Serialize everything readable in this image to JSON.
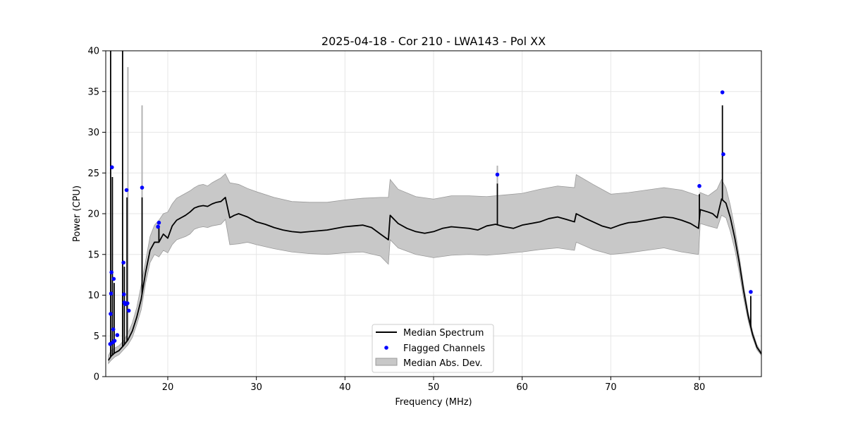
{
  "chart_data": {
    "type": "line",
    "title": "2025-04-18 - Cor 210 - LWA143 - Pol XX",
    "xlabel": "Frequency (MHz)",
    "ylabel": "Power (CPU)",
    "xlim": [
      13.0,
      87.0
    ],
    "ylim": [
      0,
      40
    ],
    "x_ticks": [
      20,
      30,
      40,
      50,
      60,
      70,
      80
    ],
    "y_ticks": [
      0,
      5,
      10,
      15,
      20,
      25,
      30,
      35,
      40
    ],
    "grid": true,
    "legend_position": "bottom-center",
    "colors": {
      "median": "#000000",
      "flagged": "#0000ff",
      "mad_fill": "#c8c8c8",
      "mad_edge": "#9a9a9a"
    },
    "legend": [
      {
        "label": "Median Spectrum",
        "kind": "line"
      },
      {
        "label": "Flagged Channels",
        "kind": "marker"
      },
      {
        "label": "Median Abs. Dev.",
        "kind": "patch"
      }
    ],
    "series": [
      {
        "name": "Median Spectrum",
        "role": "median",
        "x": [
          13.3,
          13.6,
          14.0,
          14.5,
          15.0,
          15.5,
          16.0,
          16.5,
          17.0,
          17.5,
          18.0,
          18.5,
          19.0,
          19.5,
          20.0,
          20.5,
          21.0,
          21.5,
          22.0,
          22.5,
          23.0,
          23.5,
          24.0,
          24.5,
          25.0,
          25.5,
          26.0,
          26.5,
          27.0,
          27.5,
          28.0,
          28.5,
          29.0,
          29.5,
          30.0,
          31.0,
          32.0,
          33.0,
          34.0,
          35.0,
          36.0,
          37.0,
          38.0,
          39.0,
          40.0,
          41.0,
          42.0,
          43.0,
          44.0,
          44.9,
          45.1,
          46.0,
          47.0,
          48.0,
          49.0,
          50.0,
          51.0,
          52.0,
          53.0,
          54.0,
          55.0,
          56.0,
          57.0,
          58.0,
          59.0,
          60.0,
          61.0,
          62.0,
          63.0,
          64.0,
          65.0,
          65.9,
          66.1,
          67.0,
          68.0,
          69.0,
          70.0,
          71.0,
          72.0,
          73.0,
          74.0,
          75.0,
          76.0,
          77.0,
          78.0,
          79.0,
          79.9,
          80.1,
          81.0,
          81.5,
          82.0,
          82.5,
          83.0,
          83.5,
          84.0,
          84.5,
          85.0,
          85.5,
          86.0,
          86.5,
          87.0
        ],
        "values": [
          2.0,
          2.5,
          2.9,
          3.2,
          3.8,
          4.5,
          5.6,
          7.3,
          9.5,
          12.8,
          15.5,
          16.5,
          16.5,
          17.5,
          17.0,
          18.5,
          19.2,
          19.5,
          19.8,
          20.2,
          20.7,
          20.9,
          21.0,
          20.9,
          21.2,
          21.4,
          21.5,
          22.0,
          19.5,
          19.8,
          20.0,
          19.8,
          19.6,
          19.3,
          19.0,
          18.7,
          18.3,
          18.0,
          17.8,
          17.7,
          17.8,
          17.9,
          18.0,
          18.2,
          18.4,
          18.5,
          18.6,
          18.3,
          17.5,
          16.8,
          19.8,
          18.8,
          18.2,
          17.8,
          17.6,
          17.8,
          18.2,
          18.4,
          18.3,
          18.2,
          18.0,
          18.5,
          18.7,
          18.4,
          18.2,
          18.6,
          18.8,
          19.0,
          19.4,
          19.6,
          19.3,
          19.0,
          20.0,
          19.5,
          19.0,
          18.5,
          18.2,
          18.6,
          18.9,
          19.0,
          19.2,
          19.4,
          19.6,
          19.5,
          19.2,
          18.8,
          18.2,
          20.5,
          20.2,
          20.0,
          19.5,
          21.8,
          21.3,
          19.5,
          17.0,
          14.0,
          10.5,
          7.5,
          5.2,
          3.6,
          2.8
        ]
      },
      {
        "name": "Median Abs. Dev. upper",
        "role": "mad_upper",
        "x": [
          13.3,
          13.6,
          14.0,
          14.5,
          15.0,
          15.5,
          16.0,
          16.5,
          17.0,
          17.5,
          18.0,
          18.5,
          19.0,
          19.5,
          20.0,
          20.5,
          21.0,
          21.5,
          22.0,
          22.5,
          23.0,
          23.5,
          24.0,
          24.5,
          25.0,
          25.5,
          26.0,
          26.5,
          27.0,
          28.0,
          29.0,
          30.0,
          32.0,
          34.0,
          36.0,
          38.0,
          40.0,
          42.0,
          44.0,
          44.9,
          45.1,
          46.0,
          48.0,
          50.0,
          52.0,
          54.0,
          56.0,
          58.0,
          60.0,
          62.0,
          64.0,
          65.9,
          66.1,
          68.0,
          70.0,
          72.0,
          74.0,
          76.0,
          78.0,
          79.9,
          80.1,
          81.0,
          82.0,
          82.5,
          83.0,
          83.5,
          84.0,
          84.5,
          85.0,
          85.5,
          86.0,
          86.5,
          87.0
        ],
        "values": [
          2.6,
          3.2,
          3.5,
          3.8,
          4.4,
          5.3,
          6.6,
          8.5,
          11.2,
          14.2,
          17.2,
          18.6,
          19.2,
          20.0,
          20.2,
          21.2,
          21.9,
          22.2,
          22.5,
          22.8,
          23.2,
          23.5,
          23.6,
          23.4,
          23.8,
          24.1,
          24.4,
          24.9,
          23.8,
          23.6,
          23.1,
          22.7,
          22.0,
          21.5,
          21.4,
          21.4,
          21.7,
          21.9,
          22.0,
          22.0,
          24.2,
          23.0,
          22.1,
          21.8,
          22.2,
          22.2,
          22.1,
          22.3,
          22.5,
          23.0,
          23.4,
          23.2,
          24.8,
          23.6,
          22.4,
          22.6,
          22.9,
          23.2,
          22.9,
          22.2,
          22.6,
          22.2,
          23.0,
          24.2,
          23.2,
          21.0,
          18.2,
          14.8,
          11.2,
          8.0,
          5.6,
          3.9,
          3.0
        ]
      },
      {
        "name": "Median Abs. Dev. lower",
        "role": "mad_lower",
        "x": [
          13.3,
          13.6,
          14.0,
          14.5,
          15.0,
          15.5,
          16.0,
          16.5,
          17.0,
          17.5,
          18.0,
          18.5,
          19.0,
          19.5,
          20.0,
          20.5,
          21.0,
          21.5,
          22.0,
          22.5,
          23.0,
          23.5,
          24.0,
          24.5,
          25.0,
          25.5,
          26.0,
          26.5,
          27.0,
          28.0,
          29.0,
          30.0,
          32.0,
          34.0,
          36.0,
          38.0,
          40.0,
          42.0,
          44.0,
          44.9,
          45.1,
          46.0,
          48.0,
          50.0,
          52.0,
          54.0,
          56.0,
          58.0,
          60.0,
          62.0,
          64.0,
          65.9,
          66.1,
          68.0,
          70.0,
          72.0,
          74.0,
          76.0,
          78.0,
          79.9,
          80.1,
          81.0,
          82.0,
          82.5,
          83.0,
          83.5,
          84.0,
          84.5,
          85.0,
          85.5,
          86.0,
          86.5,
          87.0
        ],
        "values": [
          1.6,
          2.0,
          2.4,
          2.7,
          3.3,
          3.9,
          4.8,
          6.4,
          8.2,
          11.5,
          14.0,
          15.0,
          14.7,
          15.5,
          15.2,
          16.2,
          16.8,
          17.0,
          17.2,
          17.5,
          18.1,
          18.3,
          18.4,
          18.3,
          18.5,
          18.6,
          18.7,
          19.3,
          16.2,
          16.3,
          16.5,
          16.2,
          15.7,
          15.3,
          15.1,
          15.0,
          15.2,
          15.3,
          14.8,
          13.8,
          16.8,
          15.8,
          15.0,
          14.6,
          14.9,
          15.0,
          14.9,
          15.1,
          15.3,
          15.6,
          15.8,
          15.5,
          16.5,
          15.6,
          15.0,
          15.2,
          15.5,
          15.8,
          15.3,
          15.0,
          18.8,
          18.5,
          18.2,
          19.8,
          19.5,
          17.8,
          15.6,
          12.8,
          9.6,
          6.9,
          4.8,
          3.3,
          2.6
        ]
      }
    ],
    "spikes": {
      "median": [
        {
          "x": 13.55,
          "y": 40.0
        },
        {
          "x": 13.75,
          "y": 24.5
        },
        {
          "x": 13.95,
          "y": 11.5
        },
        {
          "x": 14.9,
          "y": 40.0
        },
        {
          "x": 15.1,
          "y": 13.5
        },
        {
          "x": 15.4,
          "y": 22.0
        },
        {
          "x": 17.1,
          "y": 22.0
        },
        {
          "x": 19.0,
          "y": 18.5
        },
        {
          "x": 57.2,
          "y": 23.7
        },
        {
          "x": 80.0,
          "y": 22.4
        },
        {
          "x": 82.6,
          "y": 33.3
        },
        {
          "x": 85.8,
          "y": 9.9
        }
      ],
      "mad": [
        {
          "x": 15.5,
          "y": 38.0
        },
        {
          "x": 17.1,
          "y": 33.3
        },
        {
          "x": 57.2,
          "y": 25.9
        }
      ]
    },
    "flagged_channels": {
      "name": "Flagged Channels",
      "x": [
        13.5,
        13.55,
        13.6,
        13.65,
        13.7,
        13.8,
        13.85,
        13.9,
        14.0,
        14.3,
        15.0,
        15.05,
        15.1,
        15.2,
        15.35,
        15.45,
        15.6,
        17.1,
        18.9,
        19.0,
        57.2,
        80.0,
        82.6,
        82.7,
        85.8
      ],
      "values": [
        4.0,
        7.7,
        10.2,
        12.8,
        25.7,
        4.2,
        5.8,
        12.0,
        4.4,
        5.1,
        14.0,
        10.1,
        9.1,
        8.9,
        22.9,
        9.0,
        8.1,
        23.2,
        18.4,
        18.9,
        24.8,
        23.4,
        34.9,
        27.3,
        10.4
      ]
    }
  }
}
